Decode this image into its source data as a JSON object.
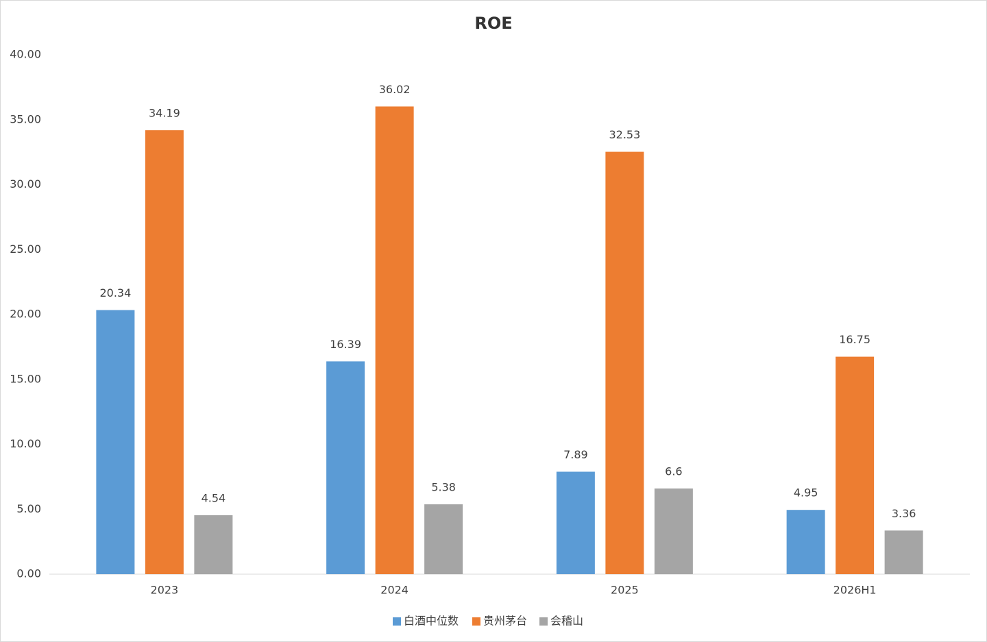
{
  "chart_data": {
    "type": "bar",
    "title": "ROE",
    "categories": [
      "2023",
      "2024",
      "2025",
      "2026H1"
    ],
    "series": [
      {
        "name": "白酒中位数",
        "color": "#5b9bd5",
        "values": [
          20.34,
          16.39,
          7.89,
          4.95
        ]
      },
      {
        "name": "贵州茅台",
        "color": "#ed7d31",
        "values": [
          34.19,
          36.02,
          32.53,
          16.75
        ]
      },
      {
        "name": "会稽山",
        "color": "#a5a5a5",
        "values": [
          4.54,
          5.38,
          6.6,
          3.36
        ]
      }
    ],
    "ylim": [
      0,
      40
    ],
    "yticks": [
      {
        "value": 0,
        "label": "0.00"
      },
      {
        "value": 5,
        "label": "5.00"
      },
      {
        "value": 10,
        "label": "10.00"
      },
      {
        "value": 15,
        "label": "15.00"
      },
      {
        "value": 20,
        "label": "20.00"
      },
      {
        "value": 25,
        "label": "25.00"
      },
      {
        "value": 30,
        "label": "30.00"
      },
      {
        "value": 35,
        "label": "35.00"
      },
      {
        "value": 40,
        "label": "40.00"
      }
    ],
    "grid": false,
    "legend": "bottom"
  }
}
